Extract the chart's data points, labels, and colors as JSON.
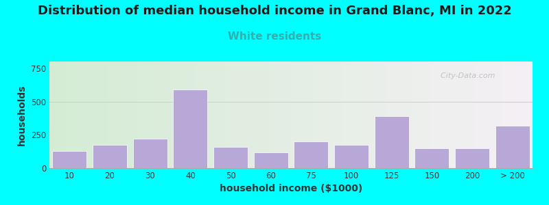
{
  "title": "Distribution of median household income in Grand Blanc, MI in 2022",
  "subtitle": "White residents",
  "xlabel": "household income ($1000)",
  "ylabel": "households",
  "background_outer": "#00FFFF",
  "background_inner_left": "#d4ecd4",
  "background_inner_right": "#f5f0f5",
  "bar_color": "#b8a8d8",
  "bar_edge_color": "#ffffff",
  "categories": [
    "10",
    "20",
    "30",
    "40",
    "50",
    "60",
    "75",
    "100",
    "125",
    "150",
    "200",
    "> 200"
  ],
  "values": [
    130,
    175,
    220,
    590,
    160,
    120,
    200,
    175,
    390,
    150,
    150,
    320
  ],
  "ylim": [
    0,
    800
  ],
  "yticks": [
    0,
    250,
    500,
    750
  ],
  "title_fontsize": 13,
  "subtitle_fontsize": 11,
  "subtitle_color": "#30b0b0",
  "axis_label_fontsize": 10,
  "tick_fontsize": 8.5,
  "watermark": "  City-Data.com"
}
